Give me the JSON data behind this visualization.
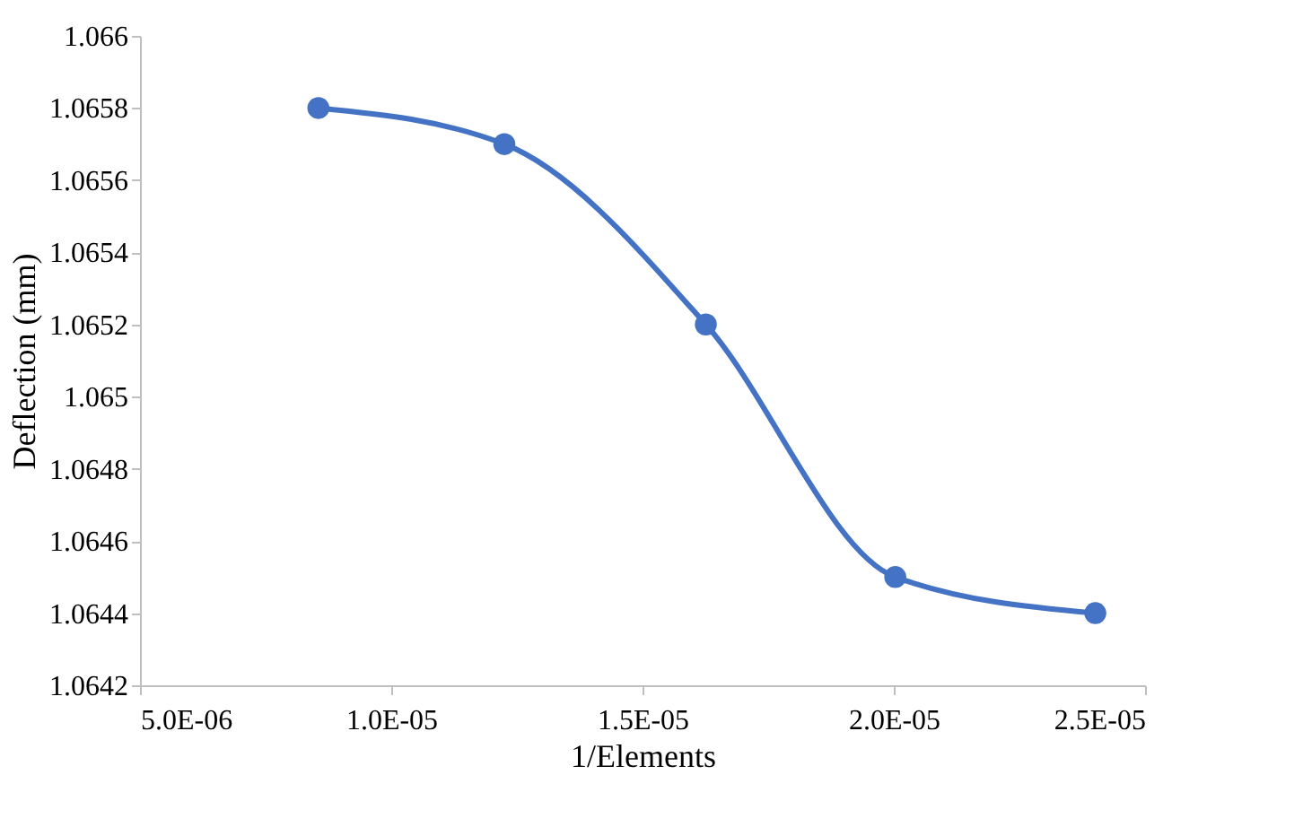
{
  "chart_data": {
    "type": "line",
    "xlabel": "1/Elements",
    "ylabel": "Deflection (mm)",
    "x": [
      8.55e-06,
      1.225e-05,
      1.626e-05,
      2.003e-05,
      2.401e-05
    ],
    "series": [
      {
        "color": "#4472c4",
        "values": [
          1.0658,
          1.0657,
          1.0652,
          1.0645,
          1.0644
        ]
      }
    ],
    "xlim": [
      5e-06,
      2.5e-05
    ],
    "xticks": [
      {
        "value": 5e-06,
        "label": "5.0E-06"
      },
      {
        "value": 1e-05,
        "label": "1.0E-05"
      },
      {
        "value": 1.5e-05,
        "label": "1.5E-05"
      },
      {
        "value": 2e-05,
        "label": "2.0E-05"
      },
      {
        "value": 2.5e-05,
        "label": "2.5E-05"
      }
    ],
    "ylim": [
      1.0642,
      1.066
    ],
    "yticks": [
      1.0642,
      1.0644,
      1.0646,
      1.0648,
      1.065,
      1.0652,
      1.0654,
      1.0656,
      1.0658,
      1.066
    ],
    "grid": false,
    "marker": "circle",
    "line_style": "solid"
  }
}
